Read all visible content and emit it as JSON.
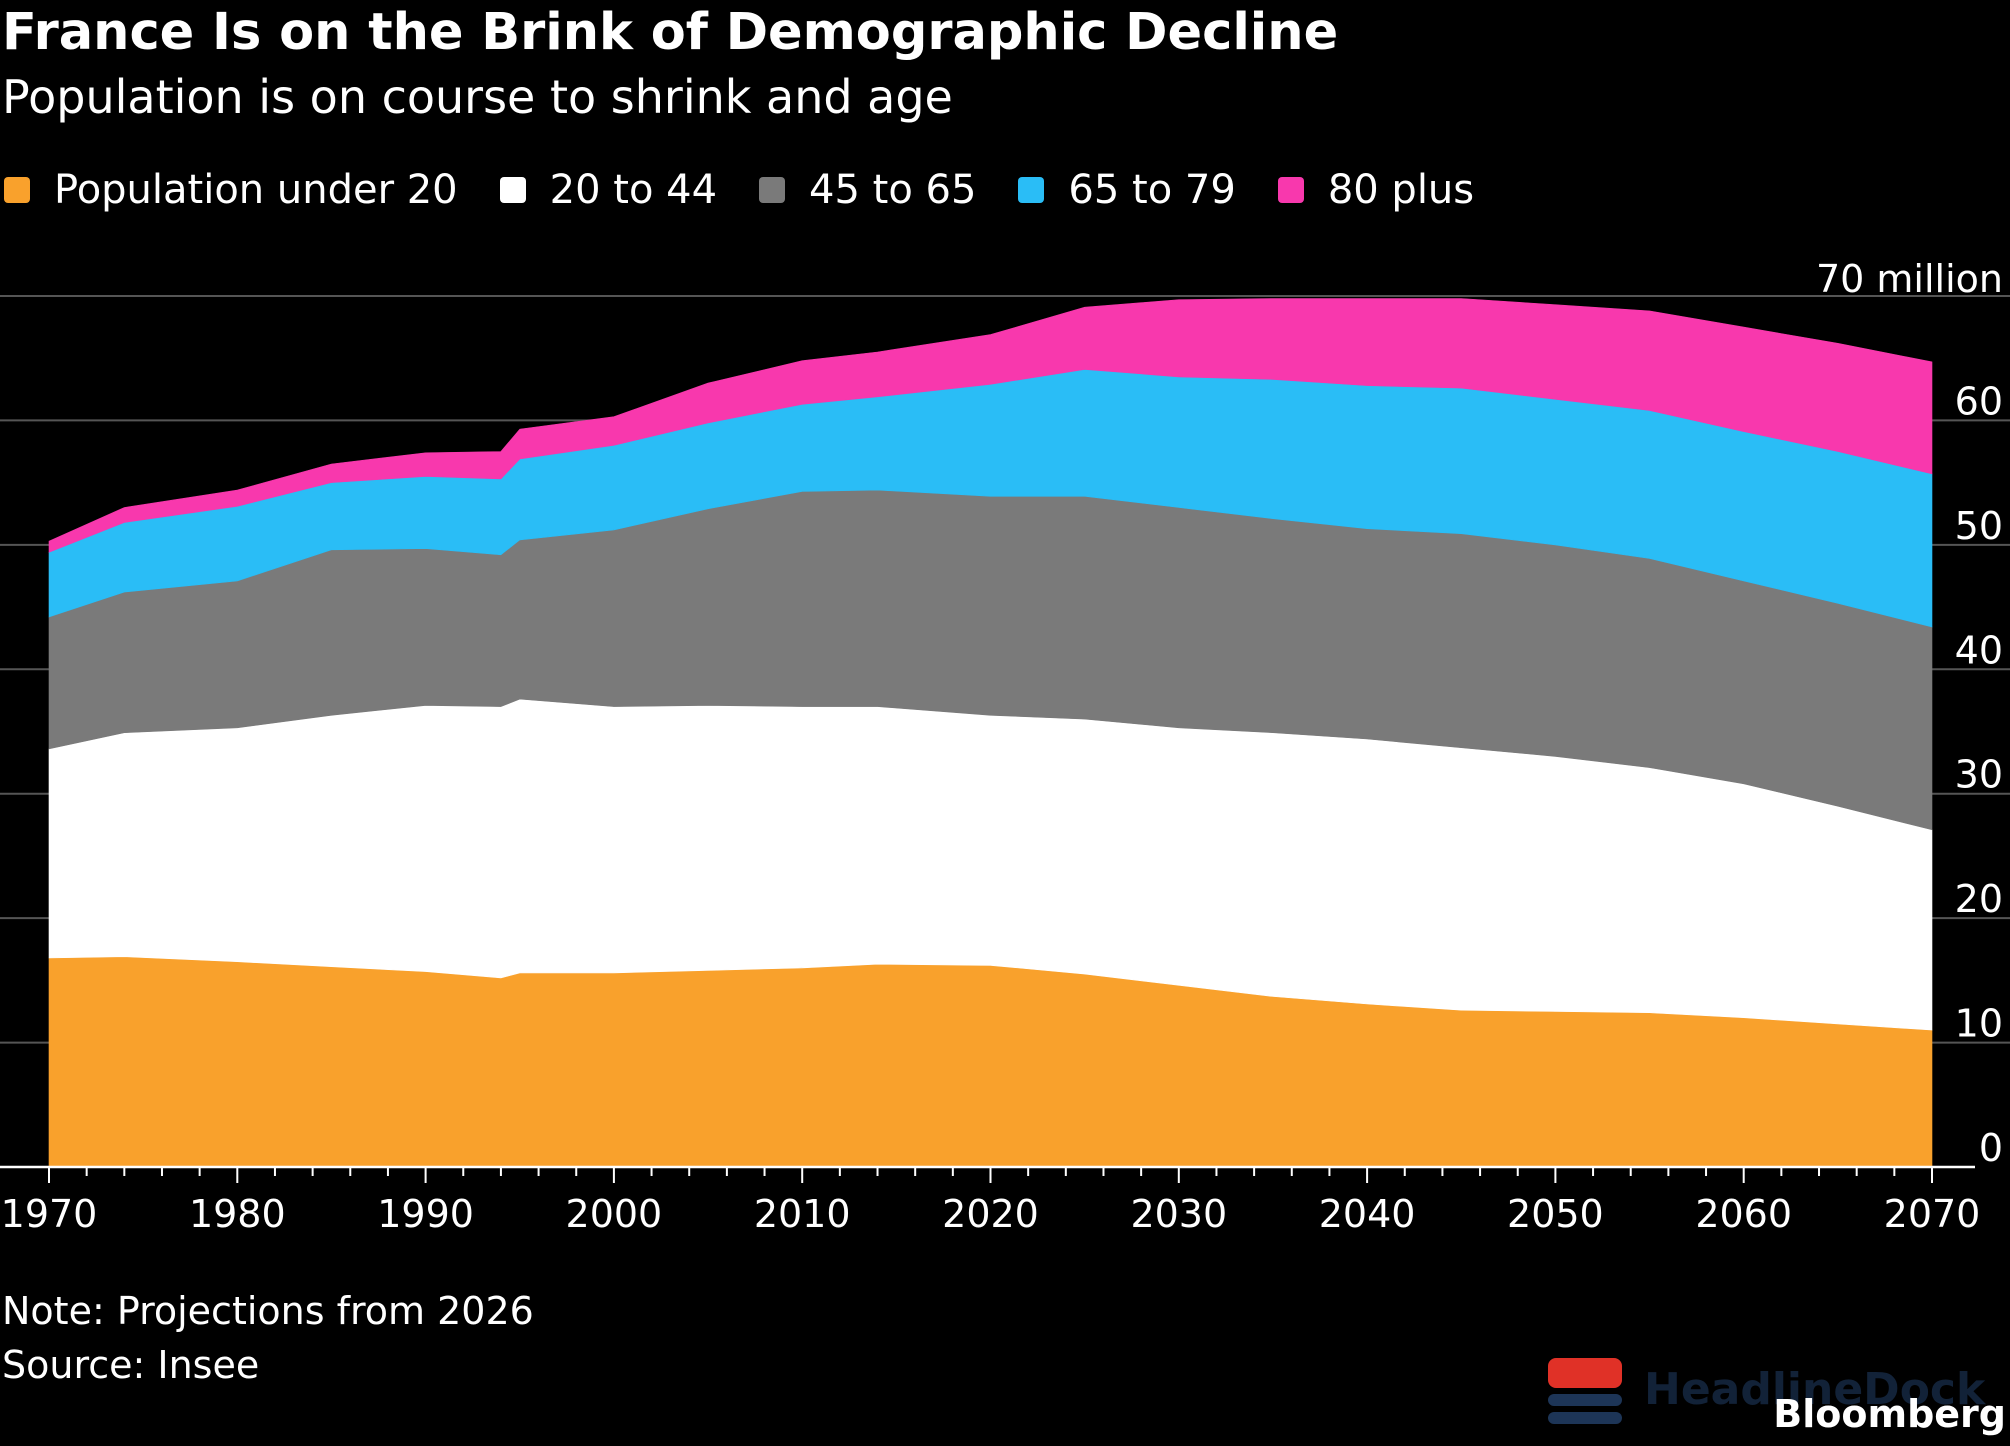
{
  "title": "France Is on the Brink of Demographic Decline",
  "subtitle": "Population is on course to shrink and age",
  "note": "Note: Projections from 2026",
  "source": "Source: Insee",
  "brand": "Bloomberg",
  "watermark": "HeadlineDock",
  "colors": {
    "background": "#000000",
    "text": "#ffffff",
    "grid": "#555555",
    "axis": "#ffffff",
    "under_20": "#f9a12c",
    "20_to_44": "#ffffff",
    "45_to_65": "#7a7a7a",
    "65_to_79": "#2abdf6",
    "80_plus": "#f838ad"
  },
  "chart_data": {
    "type": "area",
    "stacked": true,
    "title": "France Is on the Brink of Demographic Decline",
    "subtitle": "Population is on course to shrink and age",
    "xlabel": "",
    "ylabel": "",
    "y_unit_label": "70 million",
    "xlim": [
      1970,
      2070
    ],
    "ylim": [
      0,
      70
    ],
    "y_axis_side": "right",
    "grid": true,
    "legend_position": "top-left",
    "x_ticks": [
      1970,
      1980,
      1990,
      2000,
      2010,
      2020,
      2030,
      2040,
      2050,
      2060,
      2070
    ],
    "y_ticks": [
      0,
      10,
      20,
      30,
      40,
      50,
      60,
      70
    ],
    "y_tick_labels": [
      "0",
      "10",
      "20",
      "30",
      "40",
      "50",
      "60",
      "70 million"
    ],
    "x": [
      1970,
      1974,
      1980,
      1985,
      1990,
      1994,
      1995,
      2000,
      2005,
      2010,
      2014,
      2020,
      2025,
      2030,
      2035,
      2040,
      2045,
      2050,
      2055,
      2060,
      2065,
      2070
    ],
    "series": [
      {
        "name": "Population under 20",
        "color": "#f9a12c",
        "values": [
          16.8,
          16.9,
          16.5,
          16.1,
          15.7,
          15.2,
          15.6,
          15.6,
          15.8,
          16.0,
          16.3,
          16.2,
          15.5,
          14.6,
          13.7,
          13.1,
          12.6,
          12.5,
          12.4,
          12.0,
          11.5,
          11.0
        ]
      },
      {
        "name": "20 to 44",
        "color": "#ffffff",
        "values": [
          16.8,
          18.0,
          18.8,
          20.2,
          21.4,
          21.8,
          22.0,
          21.4,
          21.3,
          21.0,
          20.7,
          20.1,
          20.5,
          20.7,
          21.2,
          21.3,
          21.1,
          20.5,
          19.7,
          18.8,
          17.5,
          16.1
        ]
      },
      {
        "name": "45 to 65",
        "color": "#7a7a7a",
        "values": [
          10.6,
          11.3,
          11.8,
          13.3,
          12.6,
          12.2,
          12.8,
          14.2,
          15.8,
          17.3,
          17.4,
          17.6,
          17.9,
          17.7,
          17.2,
          16.9,
          17.2,
          17.0,
          16.8,
          16.3,
          16.3,
          16.3
        ]
      },
      {
        "name": "65 to 79",
        "color": "#2abdf6",
        "values": [
          5.2,
          5.6,
          6.0,
          5.4,
          5.8,
          6.1,
          6.5,
          6.8,
          6.9,
          7.0,
          7.5,
          9.0,
          10.2,
          10.5,
          11.2,
          11.5,
          11.7,
          11.7,
          11.9,
          12.0,
          12.2,
          12.3
        ]
      },
      {
        "name": "80 plus",
        "color": "#f838ad",
        "values": [
          0.9,
          1.2,
          1.3,
          1.5,
          1.9,
          2.2,
          2.4,
          2.3,
          3.2,
          3.5,
          3.6,
          4.0,
          5.0,
          6.2,
          6.5,
          7.0,
          7.2,
          7.6,
          8.0,
          8.4,
          8.7,
          9.0
        ]
      }
    ]
  }
}
